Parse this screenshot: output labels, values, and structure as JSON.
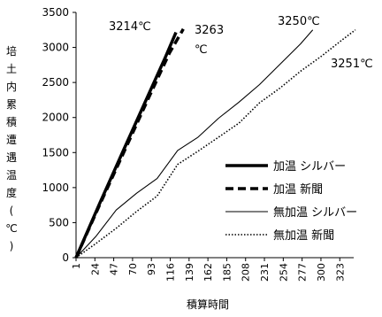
{
  "chart_data": {
    "type": "line",
    "xlabel": "積算時間",
    "ylabel": "培土内累積遭遇温度(℃)",
    "ylim": [
      0,
      3500
    ],
    "xlim": [
      1,
      340
    ],
    "y_ticks": [
      0,
      500,
      1000,
      1500,
      2000,
      2500,
      3000,
      3500
    ],
    "x_ticks": [
      1,
      24,
      47,
      70,
      93,
      116,
      139,
      162,
      185,
      208,
      231,
      254,
      277,
      300,
      323
    ],
    "grid": false,
    "legend_position": "right",
    "series": [
      {
        "name": "加温 シルバー",
        "style": "thick-solid",
        "end_label": "3214℃",
        "points": [
          [
            1,
            0
          ],
          [
            30,
            780
          ],
          [
            60,
            1560
          ],
          [
            90,
            2340
          ],
          [
            110,
            2860
          ],
          [
            123,
            3214
          ]
        ]
      },
      {
        "name": "加温 新聞",
        "style": "thick-dashed",
        "end_label": "3263℃",
        "points": [
          [
            1,
            0
          ],
          [
            30,
            760
          ],
          [
            60,
            1520
          ],
          [
            90,
            2290
          ],
          [
            115,
            2920
          ],
          [
            132,
            3263
          ]
        ]
      },
      {
        "name": "無加温 シルバー",
        "style": "thin-solid",
        "end_label": "3250℃",
        "points": [
          [
            1,
            0
          ],
          [
            25,
            300
          ],
          [
            50,
            680
          ],
          [
            75,
            920
          ],
          [
            100,
            1130
          ],
          [
            125,
            1530
          ],
          [
            150,
            1720
          ],
          [
            175,
            1990
          ],
          [
            200,
            2220
          ],
          [
            225,
            2470
          ],
          [
            250,
            2760
          ],
          [
            275,
            3050
          ],
          [
            290,
            3250
          ]
        ]
      },
      {
        "name": "無加温 新聞",
        "style": "dotted",
        "end_label": "3251℃",
        "points": [
          [
            1,
            0
          ],
          [
            25,
            200
          ],
          [
            50,
            420
          ],
          [
            75,
            660
          ],
          [
            100,
            880
          ],
          [
            125,
            1330
          ],
          [
            150,
            1520
          ],
          [
            175,
            1720
          ],
          [
            200,
            1920
          ],
          [
            225,
            2210
          ],
          [
            250,
            2420
          ],
          [
            275,
            2660
          ],
          [
            300,
            2870
          ],
          [
            325,
            3100
          ],
          [
            342,
            3251
          ]
        ]
      }
    ]
  }
}
